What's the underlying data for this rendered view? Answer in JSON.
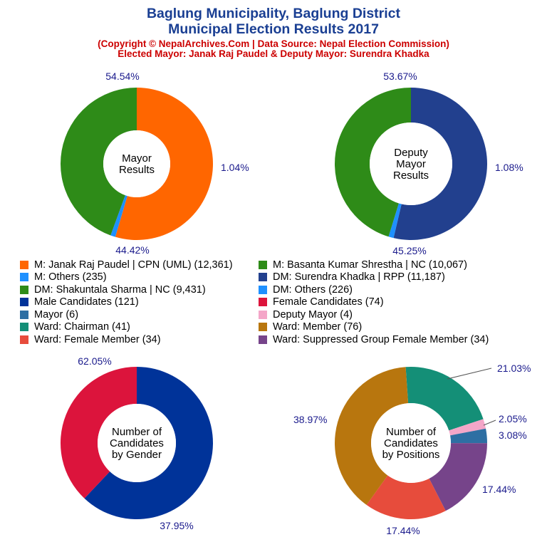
{
  "header": {
    "title_line1": "Baglung Municipality, Baglung District",
    "title_line2": "Municipal Election Results 2017",
    "subtitle_line1": "(Copyright © NepalArchives.Com | Data Source: Nepal Election Commission)",
    "subtitle_line2": "Elected Mayor: Janak Raj Paudel & Deputy Mayor: Surendra Khadka"
  },
  "chart_data": [
    {
      "type": "pie",
      "center_label": [
        "Mayor",
        "Results"
      ],
      "categories": [
        "M: Janak Raj Paudel | CPN (UML)",
        "M: Others",
        "M: Basanta Kumar Shrestha | NC"
      ],
      "values": [
        12361,
        235,
        10067
      ],
      "percent_labels": [
        "54.54%",
        "1.04%",
        "44.42%"
      ],
      "colors": [
        "#ff6600",
        "#1e90ff",
        "#2e8b18"
      ]
    },
    {
      "type": "pie",
      "center_label": [
        "Deputy",
        "Mayor",
        "Results"
      ],
      "categories": [
        "DM: Surendra Khadka | RPP",
        "DM: Others",
        "DM: Shakuntala Sharma | NC"
      ],
      "values": [
        11187,
        226,
        9431
      ],
      "percent_labels": [
        "53.67%",
        "1.08%",
        "45.25%"
      ],
      "colors": [
        "#22408e",
        "#1e90ff",
        "#2e8b18"
      ]
    },
    {
      "type": "pie",
      "center_label": [
        "Number of",
        "Candidates",
        "by Gender"
      ],
      "categories": [
        "Male Candidates",
        "Female Candidates"
      ],
      "values": [
        121,
        74
      ],
      "percent_labels": [
        "62.05%",
        "37.95%"
      ],
      "colors": [
        "#003399",
        "#dc143c"
      ]
    },
    {
      "type": "pie",
      "center_label": [
        "Number of",
        "Candidates",
        "by Positions"
      ],
      "categories": [
        "Ward: Chairman",
        "Deputy Mayor",
        "Mayor",
        "Ward: Suppressed Group Female Member",
        "Ward: Female Member",
        "Ward: Member"
      ],
      "values": [
        41,
        4,
        6,
        34,
        34,
        76
      ],
      "percent_labels": [
        "21.03%",
        "2.05%",
        "3.08%",
        "17.44%",
        "17.44%",
        "38.97%"
      ],
      "colors": [
        "#148f77",
        "#f4a6c8",
        "#2e6fa3",
        "#76448a",
        "#e74c3c",
        "#b8760e"
      ]
    }
  ],
  "legend": [
    {
      "label": "M: Janak Raj Paudel | CPN (UML) (12,361)",
      "color": "#ff6600"
    },
    {
      "label": "M: Basanta Kumar Shrestha | NC (10,067)",
      "color": "#2e8b18"
    },
    {
      "label": "M: Others (235)",
      "color": "#1e90ff"
    },
    {
      "label": "DM: Surendra Khadka | RPP (11,187)",
      "color": "#22408e"
    },
    {
      "label": "DM: Shakuntala Sharma | NC (9,431)",
      "color": "#2e8b18"
    },
    {
      "label": "DM: Others (226)",
      "color": "#1e90ff"
    },
    {
      "label": "Male Candidates (121)",
      "color": "#003399"
    },
    {
      "label": "Female Candidates (74)",
      "color": "#dc143c"
    },
    {
      "label": "Mayor (6)",
      "color": "#2e6fa3"
    },
    {
      "label": "Deputy Mayor (4)",
      "color": "#f4a6c8"
    },
    {
      "label": "Ward: Chairman (41)",
      "color": "#148f77"
    },
    {
      "label": "Ward: Member (76)",
      "color": "#b8760e"
    },
    {
      "label": "Ward: Female Member (34)",
      "color": "#e74c3c"
    },
    {
      "label": "Ward: Suppressed Group Female Member (34)",
      "color": "#76448a"
    }
  ]
}
